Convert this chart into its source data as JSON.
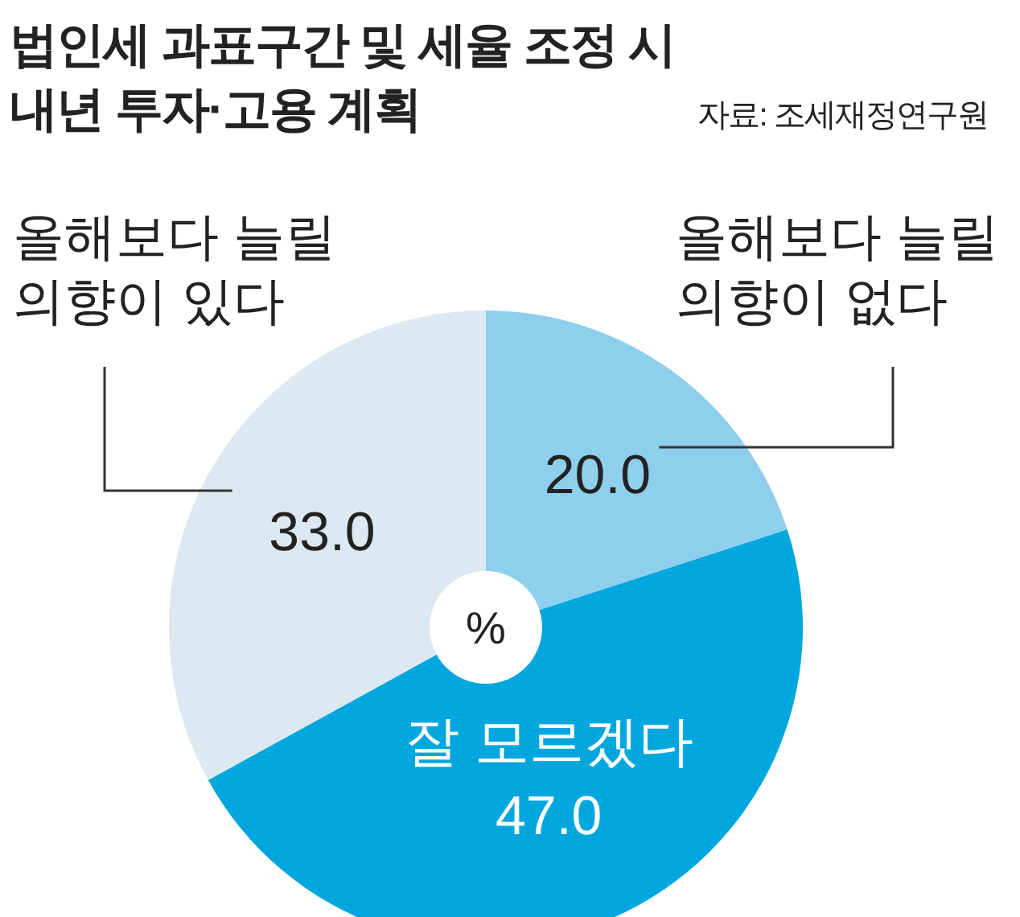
{
  "chart_data": {
    "type": "pie",
    "title": "법인세 과표구간 및 세율 조정 시\n내년 투자·고용 계획",
    "categories": [
      "올해보다 늘릴\n의향이 없다",
      "잘 모르겠다",
      "올해보다 늘릴\n의향이 있다"
    ],
    "values": [
      20.0,
      47.0,
      33.0
    ],
    "colors": [
      "#8ecfee",
      "#00a7de",
      "#dce8f2"
    ],
    "value_labels": [
      "20.0",
      "47.0",
      "33.0"
    ],
    "annotations": [
      "자료: 조세재정연구원",
      "%"
    ]
  }
}
